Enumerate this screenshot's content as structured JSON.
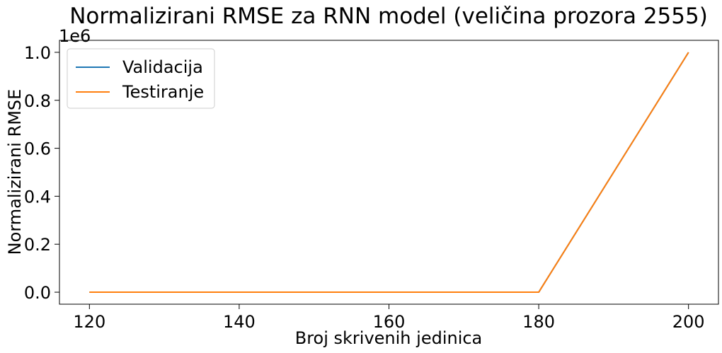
{
  "chart_data": {
    "type": "line",
    "title": "Normalizirani RMSE za RNN model (veličina prozora 2555)",
    "xlabel": "Broj skrivenih jedinica",
    "ylabel": "Normalizirani RMSE",
    "y_offset_label": "1e6",
    "x": [
      120,
      140,
      160,
      180,
      200
    ],
    "x_ticks": [
      "120",
      "140",
      "160",
      "180",
      "200"
    ],
    "xlim": [
      116,
      204
    ],
    "y_ticks": [
      "0.0",
      "0.2",
      "0.4",
      "0.6",
      "0.8",
      "1.0"
    ],
    "y_tick_values": [
      0,
      0.2,
      0.4,
      0.6,
      0.8,
      1.0
    ],
    "ylim": [
      -0.05,
      1.05
    ],
    "y_scale_factor": 1000000,
    "series": [
      {
        "name": "Validacija",
        "color": "#1f77b4",
        "values": [
          0,
          0,
          0,
          0,
          1.0
        ]
      },
      {
        "name": "Testiranje",
        "color": "#ff7f0e",
        "values": [
          0,
          0,
          0,
          0,
          1.0
        ]
      }
    ],
    "legend_position": "top-left",
    "grid": false
  }
}
